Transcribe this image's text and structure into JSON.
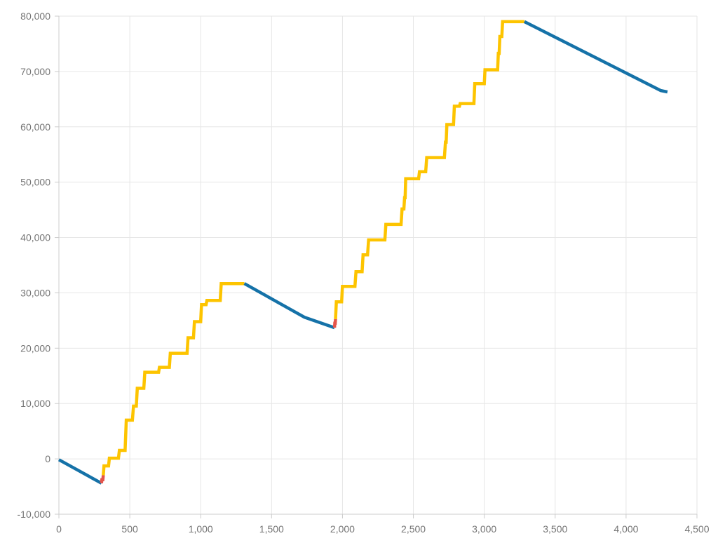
{
  "chart_data": {
    "type": "line",
    "title": "",
    "xlabel": "",
    "ylabel": "",
    "legend": "none",
    "grid": true,
    "background_color": "#ffffff",
    "gridline_color": "#e6e6e6",
    "axis_line_color": "#cccccc",
    "tick_color": "#cccccc",
    "label_color": "#757575",
    "x_axis": {
      "min": 0,
      "max": 4500,
      "tick_step": 500,
      "ticks": [
        0,
        500,
        1000,
        1500,
        2000,
        2500,
        3000,
        3500,
        4000,
        4500
      ],
      "tick_labels": [
        "0",
        "500",
        "1,000",
        "1,500",
        "2,000",
        "2,500",
        "3,000",
        "3,500",
        "4,000",
        "4,500"
      ]
    },
    "y_axis": {
      "min": -10000,
      "max": 80000,
      "tick_step": 10000,
      "ticks": [
        -10000,
        0,
        10000,
        20000,
        30000,
        40000,
        50000,
        60000,
        70000,
        80000
      ],
      "tick_labels": [
        "-10,000",
        "0",
        "10,000",
        "20,000",
        "30,000",
        "40,000",
        "50,000",
        "60,000",
        "70,000",
        "80,000"
      ]
    },
    "colors": {
      "decline_blue": "#1572a8",
      "recovery_red": "#e5544a",
      "win_yellow": "#fdc400"
    },
    "series_segments": [
      {
        "name": "decline-1",
        "role": "decline",
        "color": "#1572a8",
        "points": [
          [
            0,
            -150
          ],
          [
            300,
            -4400
          ]
        ]
      },
      {
        "name": "recovery-1",
        "role": "recovery",
        "color": "#e5544a",
        "points": [
          [
            300,
            -4400
          ],
          [
            303,
            -3750
          ],
          [
            310,
            -3750
          ],
          [
            313,
            -2950
          ]
        ]
      },
      {
        "name": "win-streak-1",
        "role": "win",
        "color": "#fdc400",
        "points": [
          [
            313,
            -2950
          ],
          [
            318,
            -1270
          ],
          [
            350,
            -1270
          ],
          [
            356,
            130
          ],
          [
            420,
            130
          ],
          [
            427,
            1530
          ],
          [
            467,
            1530
          ],
          [
            475,
            7000
          ],
          [
            518,
            7000
          ],
          [
            526,
            9540
          ],
          [
            546,
            9540
          ],
          [
            553,
            12750
          ],
          [
            599,
            12750
          ],
          [
            606,
            15650
          ],
          [
            703,
            15650
          ],
          [
            709,
            16540
          ],
          [
            779,
            16540
          ],
          [
            786,
            19080
          ],
          [
            904,
            19080
          ],
          [
            911,
            21880
          ],
          [
            949,
            21880
          ],
          [
            956,
            24800
          ],
          [
            1000,
            24800
          ],
          [
            1006,
            27860
          ],
          [
            1038,
            27860
          ],
          [
            1044,
            28620
          ],
          [
            1138,
            28620
          ],
          [
            1145,
            31680
          ],
          [
            1308,
            31680
          ]
        ]
      },
      {
        "name": "decline-2",
        "role": "decline",
        "color": "#1572a8",
        "points": [
          [
            1308,
            31680
          ],
          [
            1732,
            25600
          ],
          [
            1944,
            23700
          ]
        ]
      },
      {
        "name": "recovery-2",
        "role": "recovery",
        "color": "#e5544a",
        "points": [
          [
            1944,
            23700
          ],
          [
            1946,
            24500
          ],
          [
            1949,
            24500
          ],
          [
            1951,
            25250
          ]
        ]
      },
      {
        "name": "win-streak-2",
        "role": "win",
        "color": "#fdc400",
        "points": [
          [
            1951,
            25250
          ],
          [
            1957,
            28370
          ],
          [
            1994,
            28370
          ],
          [
            2000,
            31160
          ],
          [
            2088,
            31160
          ],
          [
            2095,
            33830
          ],
          [
            2138,
            33830
          ],
          [
            2145,
            36880
          ],
          [
            2177,
            36880
          ],
          [
            2184,
            39560
          ],
          [
            2299,
            39560
          ],
          [
            2306,
            42360
          ],
          [
            2413,
            42360
          ],
          [
            2420,
            45150
          ],
          [
            2433,
            45150
          ],
          [
            2438,
            47200
          ],
          [
            2442,
            47200
          ],
          [
            2446,
            50630
          ],
          [
            2537,
            50630
          ],
          [
            2543,
            51900
          ],
          [
            2587,
            51900
          ],
          [
            2594,
            54440
          ],
          [
            2719,
            54440
          ],
          [
            2726,
            57240
          ],
          [
            2731,
            57240
          ],
          [
            2736,
            60420
          ],
          [
            2783,
            60420
          ],
          [
            2789,
            63730
          ],
          [
            2825,
            63730
          ],
          [
            2830,
            64200
          ],
          [
            2927,
            64200
          ],
          [
            2933,
            67800
          ],
          [
            3000,
            67800
          ],
          [
            3005,
            70300
          ],
          [
            3094,
            70300
          ],
          [
            3099,
            73270
          ],
          [
            3105,
            73270
          ],
          [
            3110,
            76320
          ],
          [
            3124,
            76320
          ],
          [
            3129,
            79000
          ],
          [
            3283,
            79000
          ]
        ]
      },
      {
        "name": "decline-3",
        "role": "decline",
        "color": "#1572a8",
        "points": [
          [
            3283,
            79000
          ],
          [
            4245,
            66550
          ],
          [
            4292,
            66300
          ]
        ]
      }
    ]
  }
}
